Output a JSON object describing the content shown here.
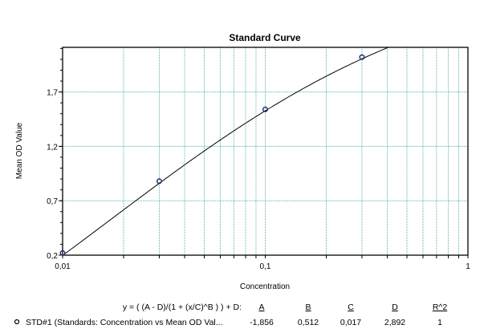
{
  "chart_data": {
    "type": "line",
    "title": "Standard Curve",
    "xlabel": "Concentration",
    "ylabel": "Mean OD Value",
    "x_scale": "log",
    "xlim": [
      0.01,
      1
    ],
    "ylim": [
      0.2,
      2.11
    ],
    "x_ticks": [
      {
        "v": 0.01,
        "label": "0,01"
      },
      {
        "v": 0.1,
        "label": "0,1"
      },
      {
        "v": 1,
        "label": "1"
      }
    ],
    "y_ticks": [
      {
        "v": 0.2,
        "label": "0,2"
      },
      {
        "v": 0.7,
        "label": "0,7"
      },
      {
        "v": 1.2,
        "label": "1,2"
      },
      {
        "v": 1.7,
        "label": "1,7"
      }
    ],
    "grid": true,
    "grid_color": "#5fb0b0",
    "series": [
      {
        "name": "STD#1 (Standards: Concentration vs Mean OD Val...",
        "points": [
          {
            "x": 0.01,
            "y": 0.22
          },
          {
            "x": 0.03,
            "y": 0.88
          },
          {
            "x": 0.1,
            "y": 1.54
          },
          {
            "x": 0.3,
            "y": 2.02
          }
        ],
        "fit": {
          "A": -1.856,
          "B": 0.512,
          "C": 0.017,
          "D": 2.892,
          "R2": 1
        },
        "marker_color": "#1a2a6c"
      }
    ]
  },
  "legend": {
    "equation": "y = ( (A - D)/(1 + (x/C)^B ) ) + D:",
    "headers": [
      "A",
      "B",
      "C",
      "D",
      "R^2"
    ],
    "row": {
      "label": "STD#1 (Standards: Concentration vs Mean OD Val...",
      "values": [
        "-1,856",
        "0,512",
        "0,017",
        "2,892",
        "1"
      ]
    }
  }
}
